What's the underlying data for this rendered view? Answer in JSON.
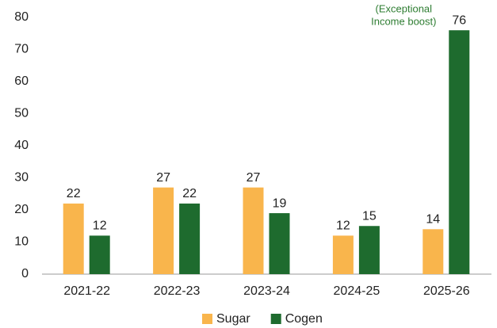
{
  "chart_data": {
    "type": "bar",
    "categories": [
      "2021-22",
      "2022-23",
      "2023-24",
      "2024-25",
      "2025-26"
    ],
    "series": [
      {
        "name": "Sugar",
        "color": "#f9b54c",
        "values": [
          22,
          27,
          27,
          12,
          14
        ]
      },
      {
        "name": "Cogen",
        "color": "#1e6b2e",
        "values": [
          12,
          22,
          19,
          15,
          76
        ]
      }
    ],
    "ylim": [
      0,
      80
    ],
    "yticks": [
      0,
      10,
      20,
      30,
      40,
      50,
      60,
      70,
      80
    ],
    "annotation": [
      "(Exceptional",
      "Income boost)"
    ],
    "legend": "bottom",
    "grid": false
  }
}
